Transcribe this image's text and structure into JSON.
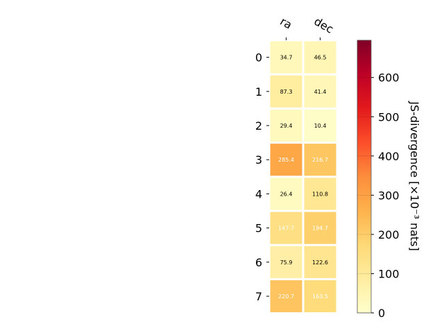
{
  "chart_data": {
    "type": "heatmap",
    "title": "",
    "columns": [
      "ra",
      "dec"
    ],
    "rows": [
      "0",
      "1",
      "2",
      "3",
      "4",
      "5",
      "6",
      "7"
    ],
    "values": [
      [
        34.7,
        46.5
      ],
      [
        87.3,
        41.4
      ],
      [
        29.4,
        10.4
      ],
      [
        285.4,
        216.7
      ],
      [
        26.4,
        110.8
      ],
      [
        147.7,
        194.7
      ],
      [
        75.9,
        122.6
      ],
      [
        220.7,
        163.5
      ]
    ],
    "colorbar": {
      "label": "JS-divergence [×10⁻³ nats]",
      "range": [
        0,
        695
      ],
      "ticks": [
        0,
        100,
        200,
        300,
        400,
        500,
        600
      ],
      "colormap": "YlOrRd"
    }
  }
}
